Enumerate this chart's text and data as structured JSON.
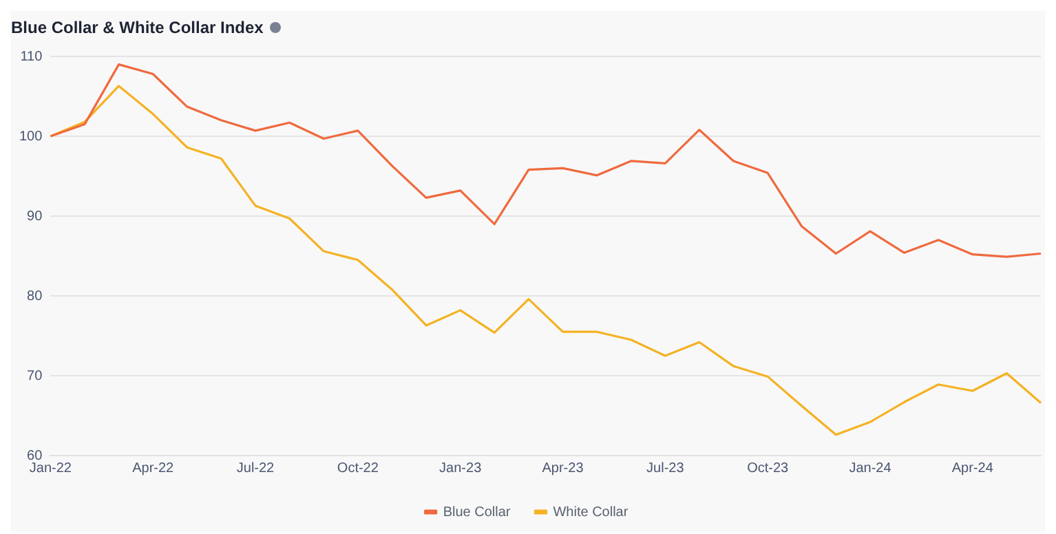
{
  "chart_data": {
    "type": "line",
    "title": "Blue Collar & White Collar Index",
    "categories": [
      "Jan-22",
      null,
      null,
      "Apr-22",
      null,
      null,
      "Jul-22",
      null,
      null,
      "Oct-22",
      null,
      null,
      "Jan-23",
      null,
      null,
      "Apr-23",
      null,
      null,
      "Jul-23",
      null,
      null,
      "Oct-23",
      null,
      null,
      "Jan-24",
      null,
      null,
      "Apr-24",
      null,
      null
    ],
    "series": [
      {
        "name": "Blue Collar",
        "color": "#ef6a3e",
        "values": [
          100,
          101.5,
          109,
          107.8,
          103.7,
          102,
          100.7,
          101.7,
          99.7,
          100.7,
          96.3,
          92.3,
          93.2,
          89,
          95.8,
          96,
          95.1,
          96.9,
          96.6,
          100.8,
          96.9,
          95.4,
          88.7,
          85.3,
          88.1,
          85.4,
          87,
          85.2,
          84.9,
          85.3
        ]
      },
      {
        "name": "White Collar",
        "color": "#f4b223",
        "values": [
          100,
          101.8,
          106.3,
          102.8,
          98.6,
          97.2,
          91.3,
          89.7,
          85.6,
          84.5,
          80.8,
          76.3,
          78.2,
          75.4,
          79.6,
          75.5,
          75.5,
          74.5,
          72.5,
          74.2,
          71.2,
          69.9,
          66.2,
          62.6,
          64.2,
          66.7,
          68.9,
          68.1,
          70.3,
          66.6
        ]
      }
    ],
    "ylim": [
      60,
      110
    ],
    "yticks": [
      60,
      70,
      80,
      90,
      100,
      110
    ],
    "grid": "y",
    "legend": "bottom",
    "marker": "none",
    "line_style": "solid"
  }
}
